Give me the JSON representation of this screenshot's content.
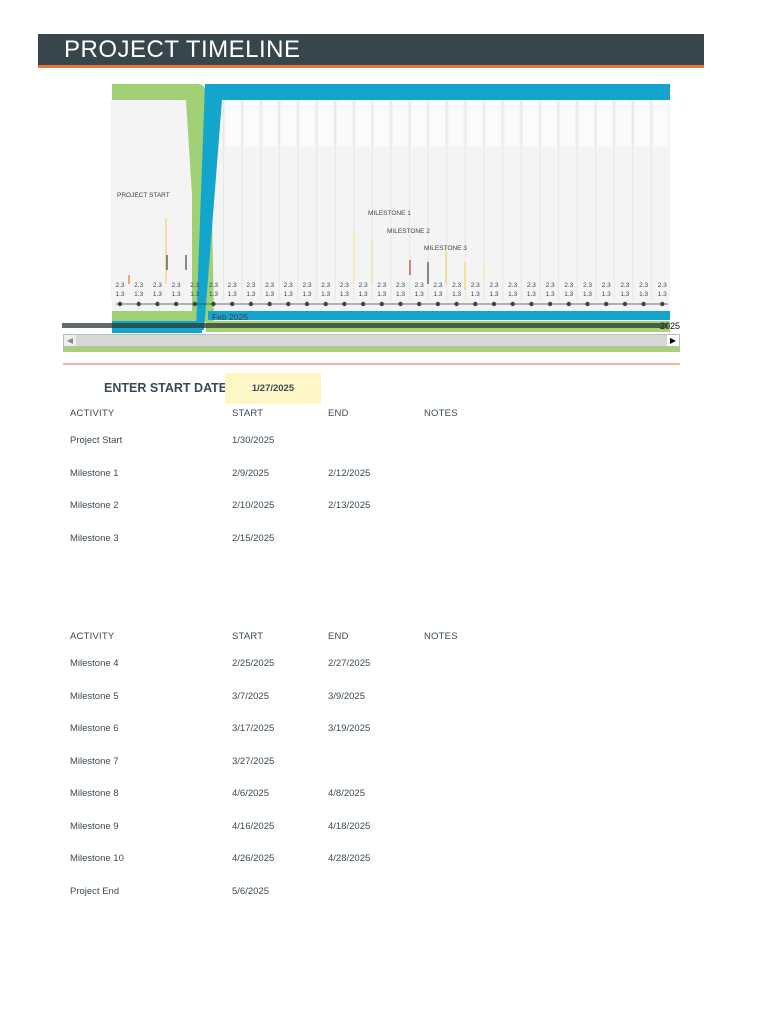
{
  "header": {
    "title": "PROJECT TIMELINE"
  },
  "colors": {
    "header_bg": "#37454d",
    "accent_orange": "#e8773a",
    "accent_blue": "#14a5cc",
    "accent_green": "#9fd076",
    "input_yellow": "#fff6c7"
  },
  "timeline": {
    "month_label": "Feb 2025",
    "end_label": "2025",
    "day_tick_top": "2.3",
    "day_tick_bottom": "1.3",
    "markers": [
      {
        "label": "PROJECT START"
      },
      {
        "label": "MILESTONE 1"
      },
      {
        "label": "MILESTONE 2"
      },
      {
        "label": "MILESTONE 3"
      }
    ]
  },
  "start_date": {
    "label": "ENTER START DATE:",
    "value": "1/27/2025"
  },
  "table1": {
    "headers": [
      "ACTIVITY",
      "START",
      "END",
      "NOTES"
    ],
    "rows": [
      {
        "activity": "Project Start",
        "start": "1/30/2025",
        "end": ""
      },
      {
        "activity": "Milestone 1",
        "start": "2/9/2025",
        "end": "2/12/2025"
      },
      {
        "activity": "Milestone 2",
        "start": "2/10/2025",
        "end": "2/13/2025"
      },
      {
        "activity": "Milestone 3",
        "start": "2/15/2025",
        "end": ""
      }
    ]
  },
  "table2": {
    "headers": [
      "ACTIVITY",
      "START",
      "END",
      "NOTES"
    ],
    "rows": [
      {
        "activity": "Milestone 4",
        "start": "2/25/2025",
        "end": "2/27/2025"
      },
      {
        "activity": "Milestone 5",
        "start": "3/7/2025",
        "end": "3/9/2025"
      },
      {
        "activity": "Milestone 6",
        "start": "3/17/2025",
        "end": "3/19/2025"
      },
      {
        "activity": "Milestone 7",
        "start": "3/27/2025",
        "end": ""
      },
      {
        "activity": "Milestone 8",
        "start": "4/6/2025",
        "end": "4/8/2025"
      },
      {
        "activity": "Milestone 9",
        "start": "4/16/2025",
        "end": "4/18/2025"
      },
      {
        "activity": "Milestone 10",
        "start": "4/26/2025",
        "end": "4/28/2025"
      },
      {
        "activity": "Project End",
        "start": "5/6/2025",
        "end": ""
      }
    ]
  }
}
